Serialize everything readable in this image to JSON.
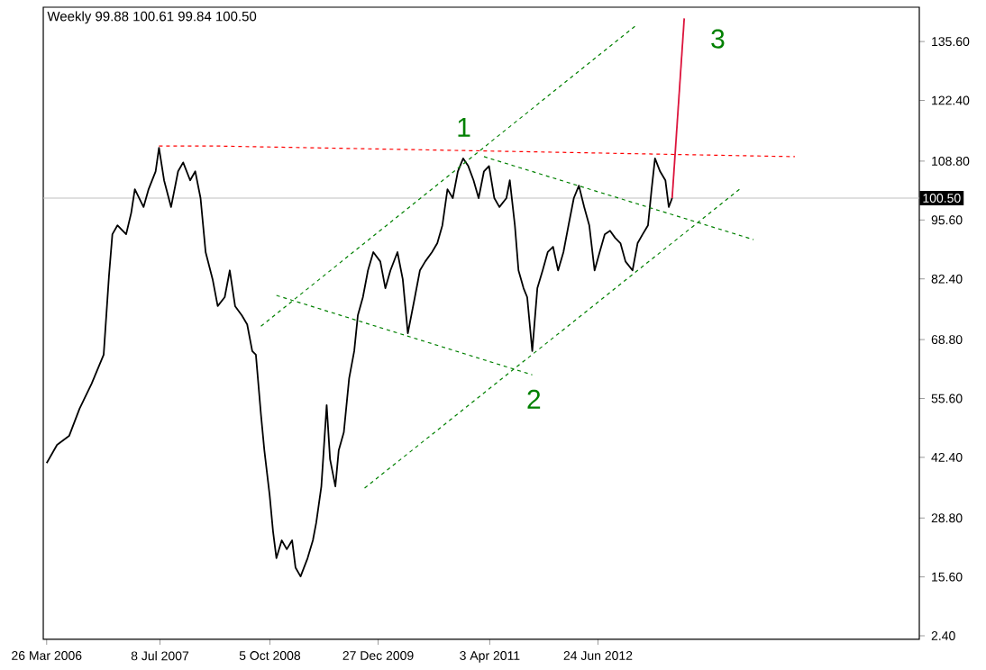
{
  "chart_data": {
    "type": "line",
    "title": "Weekly  99.88 100.61 99.84 100.50",
    "xlim": [
      "2006-03-12",
      "2016-02-14"
    ],
    "ylim": [
      1.6,
      143.3
    ],
    "xticks": [
      {
        "value": "2006-03-26",
        "label": "26 Mar 2006"
      },
      {
        "value": "2007-07-08",
        "label": "8 Jul 2007"
      },
      {
        "value": "2008-10-05",
        "label": "5 Oct 2008"
      },
      {
        "value": "2009-12-27",
        "label": "27 Dec 2009"
      },
      {
        "value": "2011-04-03",
        "label": "3 Apr 2011"
      },
      {
        "value": "2012-06-24",
        "label": "24 Jun 2012"
      }
    ],
    "yticks": [
      {
        "value": 2.4,
        "label": "2.40"
      },
      {
        "value": 15.6,
        "label": "15.60"
      },
      {
        "value": 28.8,
        "label": "28.80"
      },
      {
        "value": 42.4,
        "label": "42.40"
      },
      {
        "value": 55.6,
        "label": "55.60"
      },
      {
        "value": 68.8,
        "label": "68.80"
      },
      {
        "value": 82.4,
        "label": "82.40"
      },
      {
        "value": 95.6,
        "label": "95.60"
      },
      {
        "value": 108.8,
        "label": "108.80"
      },
      {
        "value": 122.4,
        "label": "122.40"
      },
      {
        "value": 135.6,
        "label": "135.60"
      }
    ],
    "ref_lines": [
      {
        "axis": "y",
        "value": 100.5,
        "label": "100.50",
        "color": "#c0c0c0"
      }
    ],
    "annotations": [
      "1",
      "2",
      "3"
    ],
    "series": [
      {
        "color": "#000000",
        "line_style": "solid",
        "x": [
          "2006-03-26",
          "2006-05-08",
          "2006-06-27",
          "2006-08-09",
          "2006-09-28",
          "2006-11-17",
          "2006-12-09",
          "2006-12-23",
          "2007-01-13",
          "2007-02-18",
          "2007-03-11",
          "2007-03-26",
          "2007-05-01",
          "2007-05-22",
          "2007-06-20",
          "2007-07-04",
          "2007-07-25",
          "2007-08-23",
          "2007-09-21",
          "2007-10-12",
          "2007-11-10",
          "2007-12-01",
          "2007-12-23",
          "2008-01-13",
          "2008-02-11",
          "2008-03-03",
          "2008-04-01",
          "2008-04-22",
          "2008-05-14",
          "2008-06-11",
          "2008-07-03",
          "2008-07-24",
          "2008-08-08",
          "2008-08-29",
          "2008-09-12",
          "2008-10-04",
          "2008-10-18",
          "2008-11-01",
          "2008-11-23",
          "2008-12-14",
          "2009-01-05",
          "2009-01-19",
          "2009-02-09",
          "2009-03-10",
          "2009-04-01",
          "2009-04-15",
          "2009-05-06",
          "2009-05-28",
          "2009-06-11",
          "2009-07-03",
          "2009-07-17",
          "2009-08-07",
          "2009-08-29",
          "2009-09-19",
          "2009-10-04",
          "2009-10-25",
          "2009-11-15",
          "2009-12-07",
          "2010-01-05",
          "2010-01-26",
          "2010-02-16",
          "2010-03-17",
          "2010-04-08",
          "2010-04-29",
          "2010-05-28",
          "2010-06-18",
          "2010-07-10",
          "2010-08-07",
          "2010-08-29",
          "2010-09-19",
          "2010-10-10",
          "2010-11-01",
          "2010-11-22",
          "2010-12-14",
          "2011-01-04",
          "2011-01-26",
          "2011-02-16",
          "2011-03-10",
          "2011-03-31",
          "2011-04-22",
          "2011-05-13",
          "2011-06-11",
          "2011-06-25",
          "2011-07-16",
          "2011-07-31",
          "2011-08-21",
          "2011-09-05",
          "2011-09-26",
          "2011-10-17",
          "2011-11-08",
          "2011-11-29",
          "2011-12-21",
          "2012-01-11",
          "2012-02-02",
          "2012-02-23",
          "2012-03-16",
          "2012-04-06",
          "2012-04-28",
          "2012-05-19",
          "2012-06-10",
          "2012-07-01",
          "2012-07-22",
          "2012-08-13",
          "2012-09-03",
          "2012-09-25",
          "2012-10-16",
          "2012-11-14",
          "2012-12-05",
          "2012-12-26",
          "2013-01-17",
          "2013-02-01",
          "2013-02-15",
          "2013-03-08",
          "2013-03-30",
          "2013-04-13",
          "2013-04-27"
        ],
        "values": [
          41.1,
          45.2,
          47.2,
          53.3,
          58.9,
          65.4,
          83.1,
          92.4,
          94.4,
          92.4,
          97.2,
          102.5,
          98.5,
          102.5,
          106.5,
          111.8,
          104.5,
          98.5,
          106.5,
          108.5,
          104.5,
          106.5,
          100.5,
          88.4,
          82.3,
          76.3,
          78.3,
          84.3,
          76.3,
          74.2,
          72.2,
          66.2,
          65.4,
          52.0,
          44.0,
          33.9,
          25.8,
          19.8,
          23.8,
          21.8,
          23.8,
          17.7,
          15.7,
          19.8,
          23.8,
          27.8,
          35.9,
          54.1,
          42.0,
          35.9,
          44.0,
          48.0,
          60.1,
          66.2,
          74.2,
          78.3,
          84.3,
          88.4,
          86.3,
          80.3,
          84.3,
          88.4,
          82.3,
          70.2,
          78.3,
          84.3,
          86.3,
          88.4,
          90.4,
          94.4,
          102.5,
          100.5,
          106.5,
          109.4,
          107.7,
          104.5,
          100.5,
          106.5,
          107.7,
          100.5,
          98.5,
          100.5,
          104.5,
          94.4,
          84.3,
          80.3,
          78.3,
          66.2,
          80.3,
          84.3,
          88.4,
          89.6,
          84.3,
          88.4,
          94.4,
          100.5,
          103.3,
          98.5,
          94.4,
          84.3,
          88.4,
          92.4,
          93.2,
          91.6,
          90.4,
          86.3,
          84.3,
          90.4,
          92.4,
          94.4,
          102.5,
          109.4,
          106.5,
          104.5,
          98.5,
          100.5
        ]
      },
      {
        "color": "#dc143c",
        "line_style": "solid",
        "x": [
          "2013-04-27",
          "2013-06-16"
        ],
        "values": [
          100.5,
          140.8
        ]
      },
      {
        "color": "#ff0000",
        "line_style": "dashed",
        "x": [
          "2007-07-04",
          "2008-02-11",
          "2014-09-17"
        ],
        "values": [
          112.2,
          112.2,
          109.8
        ]
      },
      {
        "color": "#008000",
        "line_style": "dashed",
        "x": [
          "2008-08-29",
          "2012-11-28"
        ],
        "values": [
          71.8,
          139.2
        ]
      },
      {
        "color": "#008000",
        "line_style": "dashed",
        "x": [
          "2009-11-01",
          "2014-01-31"
        ],
        "values": [
          35.5,
          102.5
        ]
      },
      {
        "color": "#008000",
        "line_style": "dashed",
        "x": [
          "2011-03-10",
          "2014-03-30"
        ],
        "values": [
          109.8,
          91.2
        ]
      },
      {
        "color": "#008000",
        "line_style": "dashed",
        "x": [
          "2008-11-01",
          "2011-09-26"
        ],
        "values": [
          78.7,
          60.9
        ]
      }
    ]
  }
}
